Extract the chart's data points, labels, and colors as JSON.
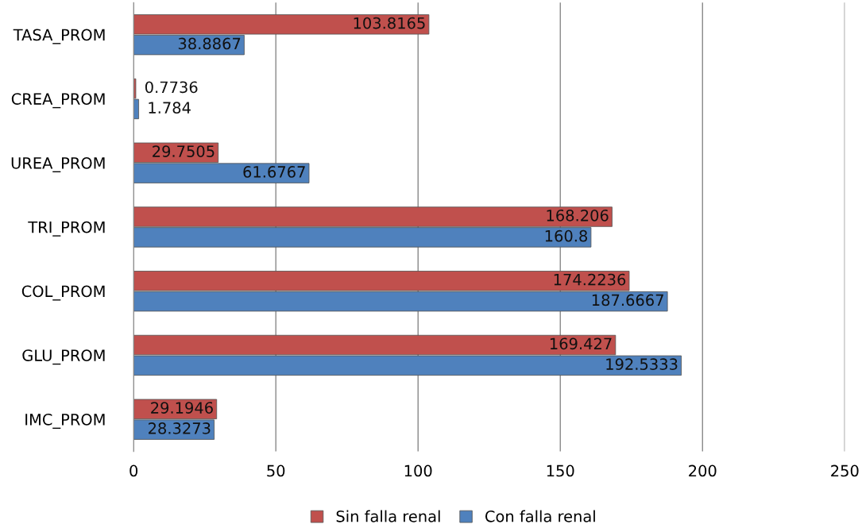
{
  "chart_data": {
    "type": "bar",
    "orientation": "horizontal",
    "categories": [
      "TASA_PROM",
      "CREA_PROM",
      "UREA_PROM",
      "TRI_PROM",
      "COL_PROM",
      "GLU_PROM",
      "IMC_PROM"
    ],
    "series": [
      {
        "name": "Sin falla renal",
        "color": "#c0504d",
        "values": [
          103.8165,
          0.7736,
          29.7505,
          168.206,
          174.2236,
          169.427,
          29.1946
        ]
      },
      {
        "name": "Con falla renal",
        "color": "#4f81bd",
        "values": [
          38.8867,
          1.784,
          61.6767,
          160.8,
          187.6667,
          192.5333,
          28.3273
        ]
      }
    ],
    "xlim": [
      0,
      250
    ],
    "xticks": [
      0,
      50,
      100,
      150,
      200,
      250
    ],
    "grid": "x",
    "legend": "bottom",
    "data_labels": true
  }
}
